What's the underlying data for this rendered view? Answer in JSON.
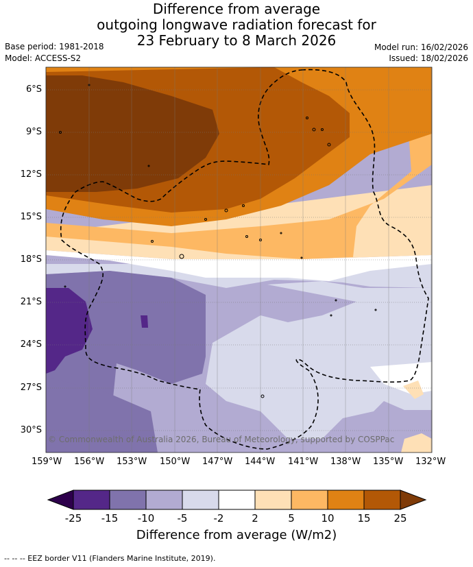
{
  "title": {
    "line1": "Difference from average",
    "line2": "outgoing longwave radiation forecast for",
    "line3": "23 February to 8 March 2026"
  },
  "meta": {
    "base_period": "Base period: 1981-2018",
    "model": "Model: ACCESS-S2",
    "model_run": "Model run: 16/02/2026",
    "issued": "Issued: 18/02/2026"
  },
  "map": {
    "lat_labels": [
      "6°S",
      "9°S",
      "12°S",
      "15°S",
      "18°S",
      "21°S",
      "24°S",
      "27°S",
      "30°S"
    ],
    "lon_labels": [
      "159°W",
      "156°W",
      "153°W",
      "150°W",
      "147°W",
      "144°W",
      "141°W",
      "138°W",
      "135°W",
      "132°W"
    ],
    "copyright": "© Commonwealth of Australia 2026, Bureau of Meteorology, supported by COSPPac",
    "eez_line": "--  --  -- EEZ border V11 (Flanders Marine Institute, 2019)."
  },
  "colorbar": {
    "title": "Difference from average (W/m2)",
    "tick_labels": [
      "-25",
      "-15",
      "-10",
      "-5",
      "-2",
      "2",
      "5",
      "10",
      "15",
      "25"
    ],
    "colors": {
      "below": "#2d004b",
      "b1": "#542788",
      "b2": "#8073ac",
      "b3": "#b2abd2",
      "b4": "#d8daeb",
      "b5": "#ffffff",
      "b6": "#fee0b6",
      "b7": "#fdb863",
      "b8": "#e08214",
      "b9": "#b35806",
      "above": "#7f3b08"
    }
  }
}
